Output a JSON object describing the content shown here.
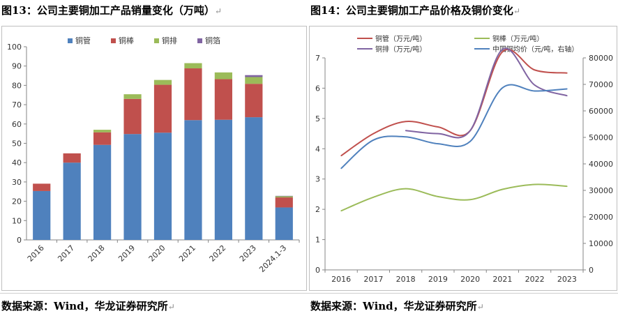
{
  "left_panel": {
    "title": "图13：公司主要铜加工产品销量变化（万吨）",
    "source": "数据来源：Wind，华龙证券研究所"
  },
  "right_panel": {
    "title": "图14：公司主要铜加工产品价格及铜价变化",
    "source": "数据来源：Wind，华龙证券研究所"
  },
  "chart_data": [
    {
      "type": "bar",
      "stacked": true,
      "title": "图13：公司主要铜加工产品销量变化（万吨）",
      "categories": [
        "2016",
        "2017",
        "2018",
        "2019",
        "2020",
        "2021",
        "2022",
        "2023",
        "2024.1-3"
      ],
      "series": [
        {
          "name": "铜管",
          "color": "#4f81bd",
          "values": [
            25.3,
            40.0,
            49.2,
            54.8,
            55.5,
            62.0,
            62.2,
            63.5,
            16.8
          ]
        },
        {
          "name": "铜棒",
          "color": "#c0504d",
          "values": [
            3.8,
            4.8,
            6.5,
            18.2,
            24.8,
            26.8,
            21.0,
            17.3,
            5.2
          ]
        },
        {
          "name": "铜排",
          "color": "#9bbb59",
          "values": [
            0.0,
            0.0,
            1.3,
            2.4,
            2.5,
            2.7,
            3.5,
            3.5,
            0.6
          ]
        },
        {
          "name": "铜箔",
          "color": "#8064a2",
          "values": [
            0.0,
            0.0,
            0.0,
            0.0,
            0.0,
            0.0,
            0.0,
            1.0,
            0.2
          ]
        }
      ],
      "ylim": [
        0,
        100
      ],
      "yticks": [
        0,
        10,
        20,
        30,
        40,
        50,
        60,
        70,
        80,
        90,
        100
      ],
      "legend_position": "top",
      "grid": false
    },
    {
      "type": "line",
      "title": "图14：公司主要铜加工产品价格及铜价变化",
      "x": [
        "2016",
        "2017",
        "2018",
        "2019",
        "2020",
        "2021",
        "2022",
        "2023"
      ],
      "series": [
        {
          "name": "铜管（万元/吨）",
          "axis": "left",
          "color": "#c0504d",
          "values": [
            3.77,
            4.5,
            4.9,
            4.72,
            4.6,
            7.2,
            6.6,
            6.5
          ]
        },
        {
          "name": "铜棒（万元/吨）",
          "axis": "left",
          "color": "#9bbb59",
          "values": [
            1.95,
            2.4,
            2.68,
            2.42,
            2.32,
            2.66,
            2.82,
            2.76
          ]
        },
        {
          "name": "铜排（万元/吨）",
          "axis": "left",
          "color": "#8064a2",
          "values": [
            null,
            null,
            4.6,
            4.5,
            4.6,
            7.28,
            6.1,
            5.75
          ]
        },
        {
          "name": "中国铜均价（元/吨，右轴）",
          "axis": "right",
          "color": "#4f81bd",
          "values": [
            38300,
            49000,
            50200,
            47600,
            48500,
            68700,
            67500,
            68300
          ]
        }
      ],
      "ylim_left": [
        0,
        7
      ],
      "yticks_left": [
        0,
        1,
        2,
        3,
        4,
        5,
        6,
        7
      ],
      "ylim_right": [
        0,
        80000
      ],
      "yticks_right": [
        0,
        10000,
        20000,
        30000,
        40000,
        50000,
        60000,
        70000,
        80000
      ],
      "legend_position": "top",
      "grid": false
    }
  ]
}
